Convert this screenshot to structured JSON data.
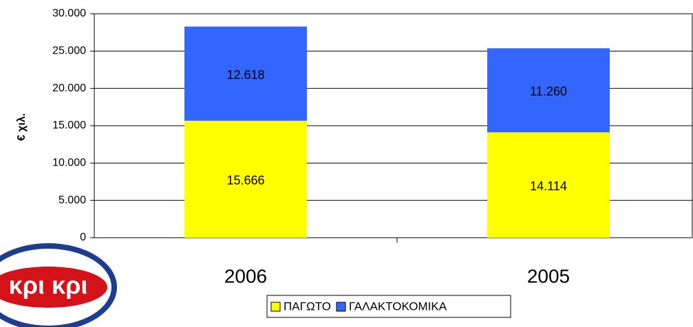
{
  "chart_data": {
    "type": "stacked_bar",
    "y_label": "€ χιλ.",
    "categories": [
      "2006",
      "2005"
    ],
    "series": [
      {
        "name": "ΠΑΓΩΤΟ",
        "color": "#ffff00",
        "values": [
          15666,
          14114
        ],
        "value_labels": [
          "15.666",
          "14.114"
        ]
      },
      {
        "name": "ΓΑΛΑΚΤΟΚΟΜΙΚΑ",
        "color": "#3366ff",
        "values": [
          12618,
          11260
        ],
        "value_labels": [
          "12.618",
          "11.260"
        ]
      }
    ],
    "ylim": [
      0,
      30000
    ],
    "yticks": [
      0,
      {
        "value": 5000,
        "label": "5.000"
      },
      {
        "value": 10000,
        "label": "10.000"
      },
      {
        "value": 15000,
        "label": "15.000"
      },
      {
        "value": 20000,
        "label": "20.000"
      },
      {
        "value": 25000,
        "label": "25.000"
      },
      {
        "value": 30000,
        "label": "30.000"
      }
    ],
    "grid": true,
    "legend": "bottom",
    "logo": "κρι κρι"
  }
}
